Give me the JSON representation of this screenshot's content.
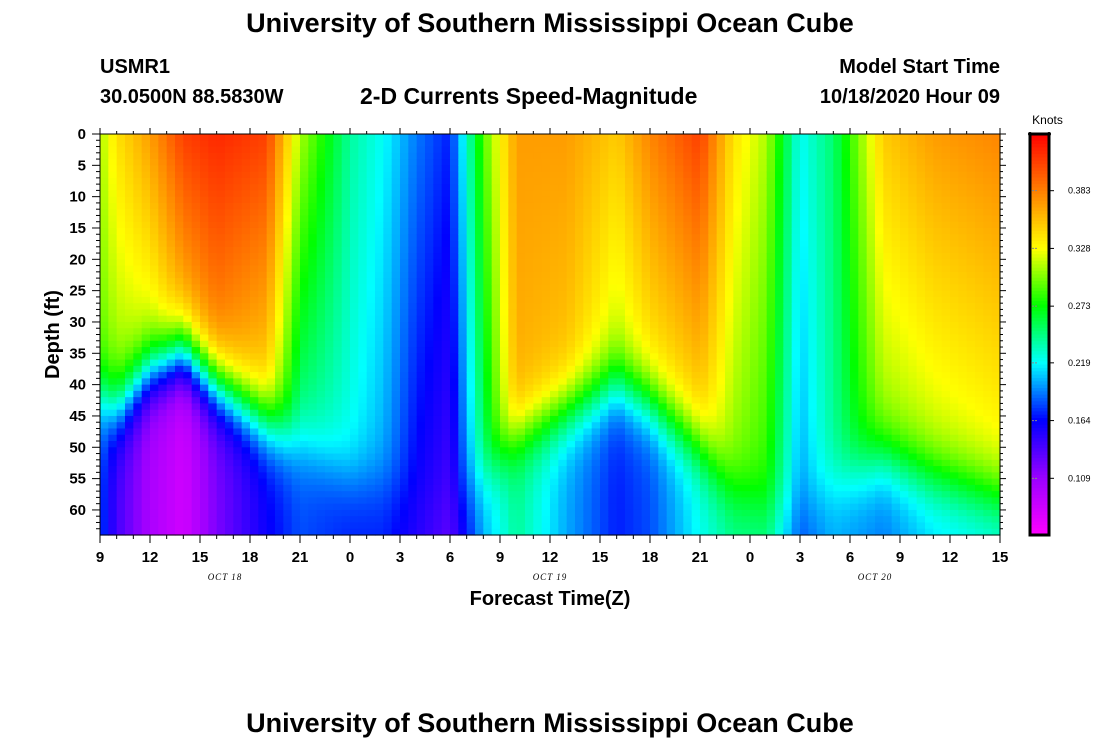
{
  "header": {
    "title": "University of Southern Mississippi Ocean Cube",
    "station_id": "USMR1",
    "station_coords": "30.0500N 88.5830W",
    "chart_title": "2-D Currents Speed-Magnitude",
    "model_start_label": "Model Start Time",
    "model_start_value": "10/18/2020 Hour 09"
  },
  "footer": {
    "title": "University of Southern Mississippi Ocean Cube"
  },
  "chart_data": {
    "type": "heatmap",
    "title": "2-D Currents Speed-Magnitude",
    "xlabel": "Forecast Time(Z)",
    "ylabel": "Depth (ft)",
    "x_unit": "hours from 10/18/2020 09Z",
    "x_range": [
      0,
      54
    ],
    "x_ticks": [
      0,
      3,
      6,
      9,
      12,
      15,
      18,
      21,
      24,
      27,
      30,
      33,
      36,
      39,
      42,
      45,
      48,
      51,
      54
    ],
    "x_tick_labels": [
      "9",
      "12",
      "15",
      "18",
      "21",
      "0",
      "3",
      "6",
      "9",
      "12",
      "15",
      "18",
      "21",
      "0",
      "3",
      "6",
      "9",
      "12",
      "15"
    ],
    "date_labels": [
      {
        "text": "OCT 18",
        "at": 7.5
      },
      {
        "text": "OCT 19",
        "at": 27
      },
      {
        "text": "OCT 20",
        "at": 46.5
      }
    ],
    "y_range": [
      0,
      64
    ],
    "y_ticks": [
      0,
      5,
      10,
      15,
      20,
      25,
      30,
      35,
      40,
      45,
      50,
      55,
      60
    ],
    "colorbar": {
      "title": "Knots",
      "range": [
        0.055,
        0.437
      ],
      "ticks": [
        0.109,
        0.164,
        0.219,
        0.273,
        0.328,
        0.383
      ],
      "tick_labels": [
        "0.109",
        "0.164",
        "0.219",
        "0.273",
        "0.328",
        "0.383"
      ],
      "colors": [
        "#ff00ff",
        "#9900ff",
        "#0000ff",
        "#00ffff",
        "#00ff00",
        "#ffff00",
        "#ff8000",
        "#ff0000"
      ]
    },
    "series": [
      {
        "name": "Currents speed",
        "profiles": [
          {
            "t": 0,
            "surface": 0.31,
            "mid": 0.29,
            "transition": 42,
            "deep": 0.18
          },
          {
            "t": 1,
            "surface": 0.34,
            "mid": 0.3,
            "transition": 44,
            "deep": 0.14
          },
          {
            "t": 3,
            "surface": 0.37,
            "mid": 0.31,
            "transition": 38,
            "deep": 0.1
          },
          {
            "t": 5,
            "surface": 0.41,
            "mid": 0.35,
            "transition": 35,
            "deep": 0.08
          },
          {
            "t": 7,
            "surface": 0.42,
            "mid": 0.37,
            "transition": 40,
            "deep": 0.12
          },
          {
            "t": 10,
            "surface": 0.41,
            "mid": 0.34,
            "transition": 46,
            "deep": 0.16
          },
          {
            "t": 12,
            "surface": 0.31,
            "mid": 0.24,
            "transition": 50,
            "deep": 0.18
          },
          {
            "t": 15,
            "surface": 0.24,
            "mid": 0.22,
            "transition": 55,
            "deep": 0.17
          },
          {
            "t": 17,
            "surface": 0.22,
            "mid": 0.2,
            "transition": 56,
            "deep": 0.17
          },
          {
            "t": 19,
            "surface": 0.19,
            "mid": 0.16,
            "transition": 60,
            "deep": 0.15
          },
          {
            "t": 21,
            "surface": 0.17,
            "mid": 0.14,
            "transition": 60,
            "deep": 0.13
          },
          {
            "t": 23,
            "surface": 0.29,
            "mid": 0.25,
            "transition": 55,
            "deep": 0.2
          },
          {
            "t": 25,
            "surface": 0.37,
            "mid": 0.36,
            "transition": 48,
            "deep": 0.24
          },
          {
            "t": 28,
            "surface": 0.37,
            "mid": 0.35,
            "transition": 44,
            "deep": 0.2
          },
          {
            "t": 31,
            "surface": 0.35,
            "mid": 0.31,
            "transition": 40,
            "deep": 0.17
          },
          {
            "t": 33,
            "surface": 0.38,
            "mid": 0.33,
            "transition": 43,
            "deep": 0.18
          },
          {
            "t": 36,
            "surface": 0.41,
            "mid": 0.34,
            "transition": 50,
            "deep": 0.22
          },
          {
            "t": 38,
            "surface": 0.34,
            "mid": 0.3,
            "transition": 57,
            "deep": 0.24
          },
          {
            "t": 40,
            "surface": 0.31,
            "mid": 0.28,
            "transition": 60,
            "deep": 0.24
          },
          {
            "t": 42,
            "surface": 0.22,
            "mid": 0.2,
            "transition": 60,
            "deep": 0.18
          },
          {
            "t": 44,
            "surface": 0.25,
            "mid": 0.24,
            "transition": 56,
            "deep": 0.2
          },
          {
            "t": 47,
            "surface": 0.35,
            "mid": 0.3,
            "transition": 52,
            "deep": 0.19
          },
          {
            "t": 50,
            "surface": 0.37,
            "mid": 0.31,
            "transition": 55,
            "deep": 0.21
          },
          {
            "t": 54,
            "surface": 0.38,
            "mid": 0.32,
            "transition": 58,
            "deep": 0.22
          }
        ]
      }
    ]
  }
}
